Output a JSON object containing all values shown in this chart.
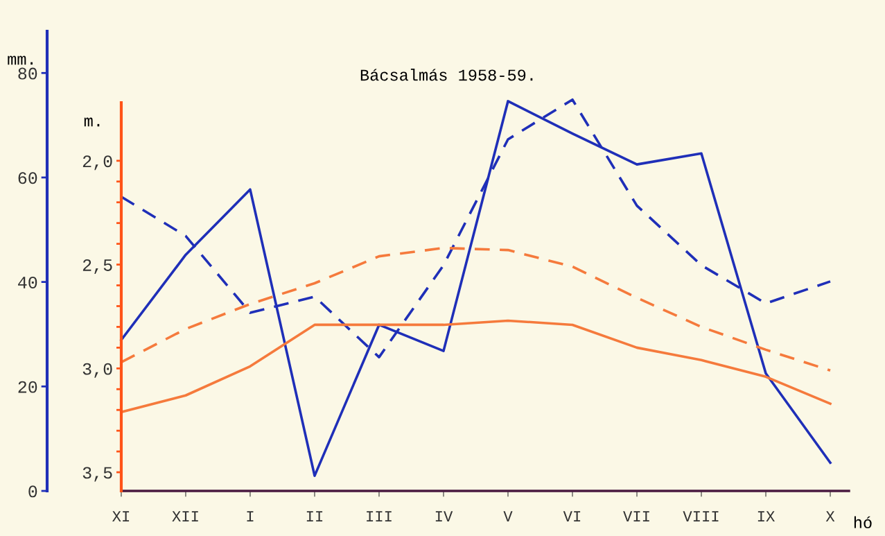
{
  "chart_data": {
    "type": "line",
    "title": "Bácsalmás 1958-59.",
    "ylabel": "mm.",
    "y2label": "m.",
    "xlabel": "hó",
    "categories": [
      "XI",
      "XII",
      "I",
      "II",
      "III",
      "IV",
      "V",
      "VI",
      "VII",
      "VIII",
      "IX",
      "X"
    ],
    "ylim": [
      0,
      88
    ],
    "yticks": [
      0,
      20,
      40,
      60,
      80
    ],
    "y2lim": [
      3.59,
      1.72
    ],
    "y2ticks": [
      {
        "value": 2.0,
        "label": "2,0"
      },
      {
        "value": 2.1,
        "label": null
      },
      {
        "value": 2.2,
        "label": null
      },
      {
        "value": 2.3,
        "label": null
      },
      {
        "value": 2.4,
        "label": null
      },
      {
        "value": 2.5,
        "label": "2,5"
      },
      {
        "value": 2.6,
        "label": null
      },
      {
        "value": 2.7,
        "label": null
      },
      {
        "value": 2.8,
        "label": null
      },
      {
        "value": 2.9,
        "label": null
      },
      {
        "value": 3.0,
        "label": "3,0"
      },
      {
        "value": 3.1,
        "label": null
      },
      {
        "value": 3.2,
        "label": null
      },
      {
        "value": 3.3,
        "label": null
      },
      {
        "value": 3.4,
        "label": null
      },
      {
        "value": 3.5,
        "label": "3,5"
      }
    ],
    "grid": false,
    "legend": false,
    "marker": "none",
    "series": [
      {
        "color": "#1f2fb8",
        "line_style": "solid",
        "values": [
          28.9,
          45.2,
          57.7,
          2.9,
          31.8,
          26.8,
          74.6,
          68.4,
          62.5,
          64.6,
          22.5,
          5.4
        ]
      },
      {
        "color": "#1f2fb8",
        "line_style": "dashed",
        "values": [
          56.3,
          48.8,
          34.1,
          37.2,
          25.6,
          43.2,
          67.3,
          74.9,
          54.6,
          43.2,
          35.9,
          40.1
        ]
      },
      {
        "color": "#f57a3c",
        "line_style": "solid",
        "axis": "y2",
        "values": [
          3.21,
          3.13,
          2.99,
          2.79,
          2.79,
          2.79,
          2.77,
          2.79,
          2.9,
          2.96,
          3.04,
          3.17
        ]
      },
      {
        "color": "#f57a3c",
        "line_style": "dashed",
        "axis": "y2",
        "values": [
          2.97,
          2.81,
          2.69,
          2.59,
          2.46,
          2.42,
          2.43,
          2.51,
          2.66,
          2.8,
          2.91,
          3.01
        ]
      }
    ]
  }
}
